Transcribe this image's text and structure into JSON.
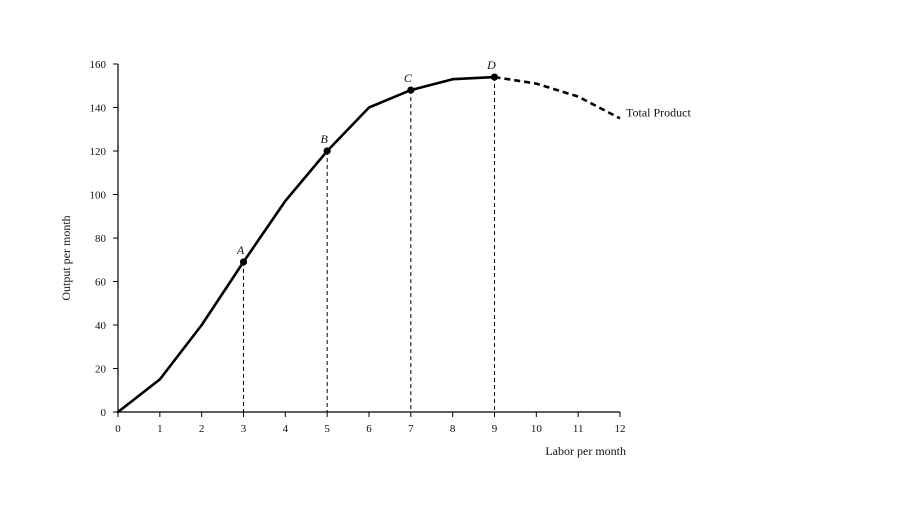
{
  "chart_data": {
    "type": "line",
    "xlabel": "Labor per month",
    "ylabel": "Output per month",
    "xlim": [
      0,
      12
    ],
    "ylim": [
      0,
      160
    ],
    "x_ticks": [
      0,
      1,
      2,
      3,
      4,
      5,
      6,
      7,
      8,
      9,
      10,
      11,
      12
    ],
    "y_ticks": [
      0,
      20,
      40,
      60,
      80,
      100,
      120,
      140,
      160
    ],
    "grid": false,
    "series": [
      {
        "name": "Total Product",
        "style": "solid",
        "color": "#000000",
        "x": [
          0,
          1,
          2,
          3,
          4,
          5,
          6,
          7,
          8,
          9
        ],
        "y": [
          0,
          15,
          40,
          69,
          97,
          120,
          140,
          148,
          153,
          154
        ]
      },
      {
        "name": "Total Product",
        "style": "dashed",
        "color": "#000000",
        "x": [
          9,
          10,
          11,
          12
        ],
        "y": [
          154,
          151,
          145,
          135
        ]
      }
    ],
    "points": [
      {
        "label": "A",
        "x": 3,
        "y": 69
      },
      {
        "label": "B",
        "x": 5,
        "y": 120
      },
      {
        "label": "C",
        "x": 7,
        "y": 148
      },
      {
        "label": "D",
        "x": 9,
        "y": 154
      }
    ],
    "annotations": [
      {
        "text": "Total Product",
        "x": 12,
        "y": 135
      }
    ]
  }
}
